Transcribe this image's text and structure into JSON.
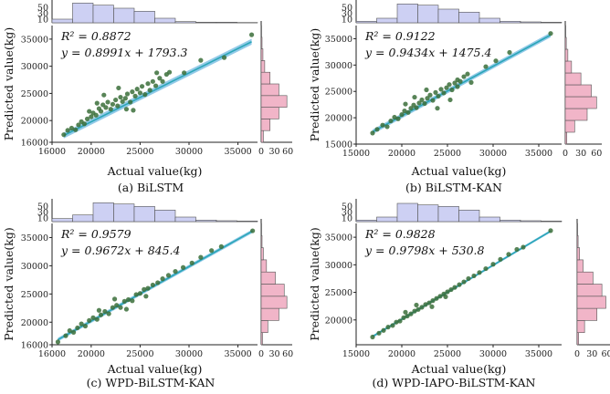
{
  "chart_data": [
    {
      "type": "scatter",
      "caption": "(a) BiLSTM",
      "xlabel": "Actual value(kg)",
      "ylabel": "Predicted value(kg)",
      "r2_text": "R² = 0.8872",
      "eq_text": "y = 0.8991x + 1793.3",
      "slope": 0.8991,
      "intercept": 1793.3,
      "xlim": [
        16000,
        37000
      ],
      "ylim": [
        16000,
        37500
      ],
      "xticks": [
        16000,
        20000,
        25000,
        30000,
        35000
      ],
      "yticks": [
        16000,
        20000,
        25000,
        30000,
        35000
      ],
      "top_hist": {
        "ticks": [
          10,
          30,
          50
        ],
        "max": 75,
        "values": [
          12,
          65,
          58,
          48,
          38,
          15,
          4,
          2,
          2,
          1
        ]
      },
      "right_hist": {
        "ticks": [
          0,
          30,
          60
        ],
        "max": 70,
        "values": [
          5,
          20,
          40,
          58,
          40,
          20,
          8,
          4,
          2,
          1
        ]
      },
      "points": [
        [
          17200,
          17400
        ],
        [
          17600,
          18200
        ],
        [
          18000,
          18600
        ],
        [
          18400,
          18300
        ],
        [
          18700,
          19200
        ],
        [
          19000,
          19800
        ],
        [
          19300,
          19400
        ],
        [
          19600,
          20300
        ],
        [
          20000,
          20700
        ],
        [
          20200,
          21400
        ],
        [
          20500,
          21000
        ],
        [
          20800,
          22200
        ],
        [
          21000,
          21700
        ],
        [
          21200,
          22900
        ],
        [
          21500,
          22400
        ],
        [
          21700,
          23400
        ],
        [
          22000,
          22100
        ],
        [
          22200,
          23000
        ],
        [
          22500,
          23800
        ],
        [
          22700,
          22700
        ],
        [
          23000,
          24300
        ],
        [
          23200,
          23500
        ],
        [
          23500,
          24100
        ],
        [
          23700,
          24900
        ],
        [
          24000,
          23400
        ],
        [
          24200,
          25300
        ],
        [
          24500,
          24500
        ],
        [
          24700,
          25800
        ],
        [
          25000,
          25100
        ],
        [
          25200,
          26300
        ],
        [
          25500,
          24800
        ],
        [
          25800,
          26800
        ],
        [
          26000,
          25600
        ],
        [
          26300,
          27200
        ],
        [
          26600,
          26400
        ],
        [
          27000,
          27800
        ],
        [
          27300,
          27200
        ],
        [
          27700,
          28500
        ],
        [
          28000,
          28900
        ],
        [
          21300,
          24700
        ],
        [
          22800,
          26000
        ],
        [
          24300,
          21900
        ],
        [
          20600,
          23200
        ],
        [
          23600,
          22100
        ],
        [
          26700,
          28800
        ],
        [
          19800,
          21700
        ],
        [
          29500,
          28800
        ],
        [
          31200,
          31100
        ],
        [
          33600,
          31600
        ],
        [
          36400,
          35800
        ]
      ]
    },
    {
      "type": "scatter",
      "caption": "(b) BiLSTM-KAN",
      "xlabel": "Actual value(kg)",
      "ylabel": "Predicted value(kg)",
      "r2_text": "R² = 0.9122",
      "eq_text": "y = 0.9434x + 1475.4",
      "slope": 0.9434,
      "intercept": 1475.4,
      "xlim": [
        15000,
        37500
      ],
      "ylim": [
        15000,
        37500
      ],
      "xticks": [
        15000,
        20000,
        25000,
        30000,
        35000
      ],
      "yticks": [
        15000,
        20000,
        25000,
        30000,
        35000
      ],
      "top_hist": {
        "ticks": [
          10,
          30,
          50
        ],
        "max": 75,
        "values": [
          5,
          15,
          62,
          58,
          45,
          35,
          15,
          5,
          3,
          2
        ]
      },
      "right_hist": {
        "ticks": [
          0,
          30,
          60
        ],
        "max": 70,
        "values": [
          3,
          18,
          42,
          60,
          50,
          30,
          12,
          5,
          2,
          1
        ]
      },
      "points": [
        [
          16800,
          17100
        ],
        [
          17300,
          17800
        ],
        [
          17900,
          18600
        ],
        [
          18400,
          18300
        ],
        [
          18800,
          19400
        ],
        [
          19200,
          20100
        ],
        [
          19600,
          19800
        ],
        [
          20000,
          20600
        ],
        [
          20300,
          21300
        ],
        [
          20700,
          21000
        ],
        [
          21000,
          21800
        ],
        [
          21300,
          22400
        ],
        [
          21600,
          21900
        ],
        [
          21900,
          22800
        ],
        [
          22200,
          23400
        ],
        [
          22500,
          22700
        ],
        [
          22800,
          23700
        ],
        [
          23100,
          24300
        ],
        [
          23400,
          23300
        ],
        [
          23700,
          24800
        ],
        [
          24000,
          24100
        ],
        [
          24300,
          25400
        ],
        [
          24600,
          24700
        ],
        [
          24900,
          25700
        ],
        [
          25200,
          26300
        ],
        [
          25500,
          25300
        ],
        [
          25800,
          26600
        ],
        [
          26100,
          27200
        ],
        [
          26400,
          26900
        ],
        [
          26800,
          27800
        ],
        [
          27200,
          28300
        ],
        [
          27600,
          26700
        ],
        [
          21400,
          23900
        ],
        [
          22700,
          25300
        ],
        [
          23900,
          21800
        ],
        [
          25300,
          23400
        ],
        [
          26100,
          25900
        ],
        [
          20400,
          22600
        ],
        [
          29200,
          29700
        ],
        [
          30300,
          30800
        ],
        [
          31800,
          32400
        ],
        [
          36300,
          36000
        ]
      ]
    },
    {
      "type": "scatter",
      "caption": "(c) WPD-BiLSTM-KAN",
      "xlabel": "Actual value(kg)",
      "ylabel": "Predicted value(kg)",
      "r2_text": "R² = 0.9579",
      "eq_text": "y = 0.9672x + 845.4",
      "slope": 0.9672,
      "intercept": 845.4,
      "xlim": [
        16000,
        37000
      ],
      "ylim": [
        16000,
        37500
      ],
      "xticks": [
        16000,
        20000,
        25000,
        30000,
        35000
      ],
      "yticks": [
        16000,
        20000,
        25000,
        30000,
        35000
      ],
      "top_hist": {
        "ticks": [
          10,
          30,
          50
        ],
        "max": 75,
        "values": [
          10,
          22,
          62,
          58,
          50,
          38,
          15,
          5,
          3,
          2
        ]
      },
      "right_hist": {
        "ticks": [
          0,
          30,
          60
        ],
        "max": 70,
        "values": [
          3,
          15,
          40,
          58,
          52,
          32,
          12,
          5,
          2,
          1
        ]
      },
      "points": [
        [
          16600,
          16500
        ],
        [
          17400,
          17600
        ],
        [
          17800,
          18500
        ],
        [
          18200,
          18200
        ],
        [
          18600,
          19000
        ],
        [
          19000,
          19700
        ],
        [
          19400,
          19300
        ],
        [
          19800,
          20300
        ],
        [
          20200,
          20800
        ],
        [
          20600,
          20500
        ],
        [
          21000,
          21300
        ],
        [
          21400,
          21900
        ],
        [
          21800,
          21500
        ],
        [
          22200,
          22600
        ],
        [
          22600,
          23000
        ],
        [
          23000,
          22600
        ],
        [
          23400,
          23700
        ],
        [
          23800,
          24000
        ],
        [
          24200,
          23800
        ],
        [
          24600,
          24900
        ],
        [
          25000,
          25100
        ],
        [
          25400,
          25800
        ],
        [
          25800,
          26000
        ],
        [
          26300,
          26600
        ],
        [
          26800,
          27000
        ],
        [
          27300,
          27700
        ],
        [
          27900,
          28300
        ],
        [
          28600,
          29000
        ],
        [
          29400,
          29700
        ],
        [
          30300,
          30500
        ],
        [
          31200,
          31500
        ],
        [
          32300,
          32700
        ],
        [
          33300,
          33400
        ],
        [
          36500,
          36200
        ],
        [
          20800,
          22100
        ],
        [
          23600,
          22300
        ],
        [
          22400,
          24100
        ],
        [
          25600,
          24600
        ]
      ]
    },
    {
      "type": "scatter",
      "caption": "(d) WPD-IAPO-BiLSTM-KAN",
      "xlabel": "Actual value(kg)",
      "ylabel": "Predicted value(kg)",
      "r2_text": "R² = 0.9828",
      "eq_text": "y = 0.9798x + 530.8",
      "slope": 0.9798,
      "intercept": 530.8,
      "xlim": [
        15000,
        37500
      ],
      "ylim": [
        15500,
        37500
      ],
      "xticks": [
        15000,
        20000,
        25000,
        30000,
        35000
      ],
      "yticks": [
        20000,
        25000,
        30000,
        35000
      ],
      "top_hist": {
        "ticks": [
          10,
          30,
          50
        ],
        "max": 75,
        "values": [
          5,
          15,
          60,
          55,
          50,
          38,
          15,
          5,
          3,
          2
        ]
      },
      "right_hist": {
        "ticks": [
          0,
          30,
          60
        ],
        "max": 70,
        "values": [
          3,
          15,
          40,
          58,
          50,
          32,
          12,
          5,
          2,
          1
        ]
      },
      "points": [
        [
          16800,
          16900
        ],
        [
          17500,
          17600
        ],
        [
          18000,
          18100
        ],
        [
          18500,
          18700
        ],
        [
          19000,
          19000
        ],
        [
          19400,
          19600
        ],
        [
          19800,
          19800
        ],
        [
          20200,
          20400
        ],
        [
          20600,
          20700
        ],
        [
          21000,
          21100
        ],
        [
          21400,
          21600
        ],
        [
          21800,
          21900
        ],
        [
          22200,
          22300
        ],
        [
          22600,
          22800
        ],
        [
          23000,
          23100
        ],
        [
          23400,
          23500
        ],
        [
          23800,
          23900
        ],
        [
          24200,
          24300
        ],
        [
          24600,
          24700
        ],
        [
          25000,
          25100
        ],
        [
          25400,
          25500
        ],
        [
          25800,
          25900
        ],
        [
          26300,
          26400
        ],
        [
          26800,
          26900
        ],
        [
          27300,
          27500
        ],
        [
          27900,
          28000
        ],
        [
          28500,
          28600
        ],
        [
          29200,
          29300
        ],
        [
          30000,
          30100
        ],
        [
          30800,
          31000
        ],
        [
          31700,
          31900
        ],
        [
          32600,
          32800
        ],
        [
          33300,
          33200
        ],
        [
          36300,
          36200
        ],
        [
          21600,
          22700
        ],
        [
          23300,
          22400
        ],
        [
          20400,
          21400
        ],
        [
          24800,
          24200
        ]
      ]
    }
  ]
}
